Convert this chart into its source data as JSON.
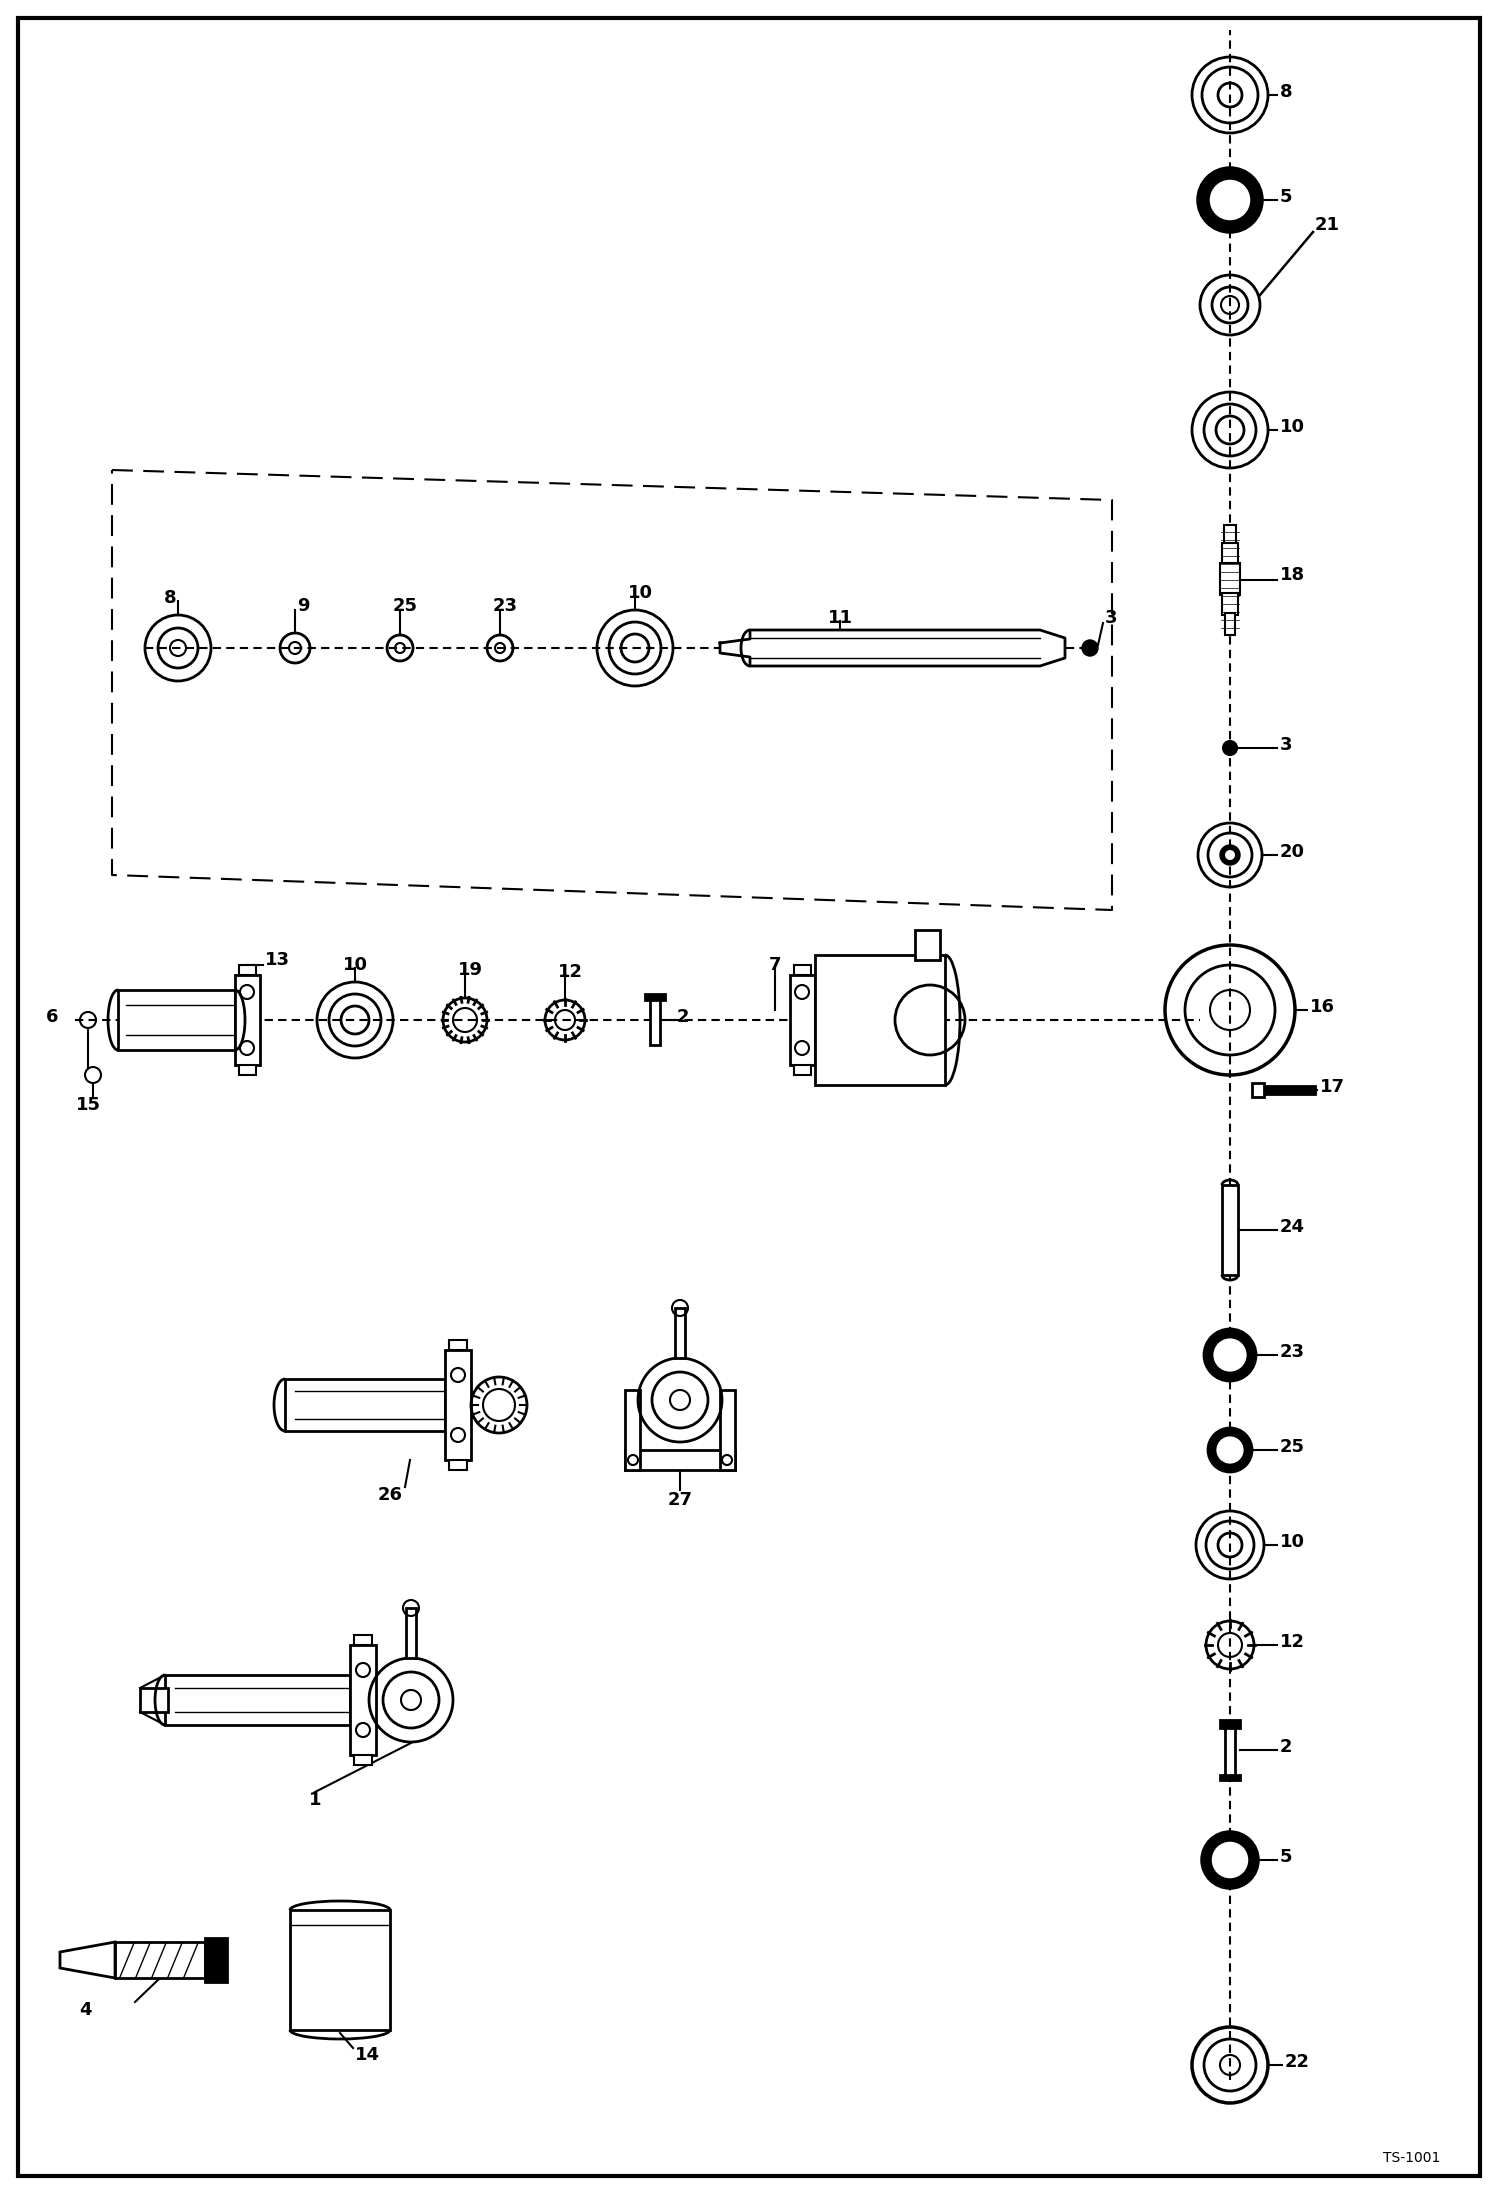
{
  "bg_color": "#ffffff",
  "line_color": "#000000",
  "fig_width": 14.98,
  "fig_height": 21.94,
  "dpi": 100,
  "watermark": "TS-1001"
}
